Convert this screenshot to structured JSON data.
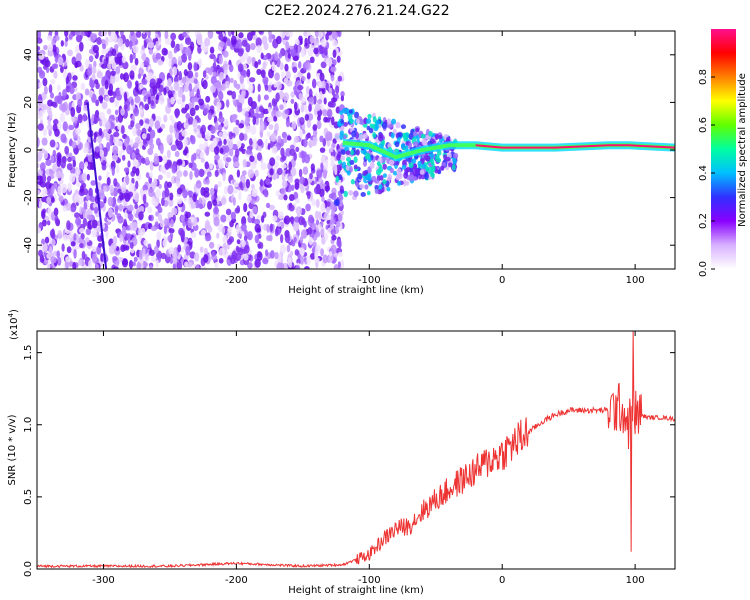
{
  "title": "C2E2.2024.276.21.24.G22",
  "chart_data": [
    {
      "type": "heatmap",
      "xlabel": "Height of straight line (km)",
      "ylabel": "Frequency (Hz)",
      "xlim": [
        -350,
        130
      ],
      "ylim": [
        -50,
        50
      ],
      "xticks": [
        -300,
        -200,
        -100,
        0,
        100
      ],
      "yticks": [
        -40,
        -20,
        0,
        20,
        40
      ],
      "colorbar": {
        "label": "Normalized spectral amplitude",
        "range": [
          0.0,
          1.0
        ],
        "ticks": [
          0.0,
          0.2,
          0.4,
          0.6,
          0.8
        ],
        "colors": [
          "#ffffff",
          "#d8b0ff",
          "#8800ff",
          "#3030ff",
          "#00c0ff",
          "#00ffa0",
          "#60ff00",
          "#ffff00",
          "#ff8000",
          "#ff0000",
          "#ff1090"
        ]
      },
      "signal_trace": [
        {
          "x": -120,
          "y": 3
        },
        {
          "x": -100,
          "y": 2
        },
        {
          "x": -80,
          "y": -3
        },
        {
          "x": -60,
          "y": 0
        },
        {
          "x": -40,
          "y": 2
        },
        {
          "x": -20,
          "y": 2
        },
        {
          "x": 0,
          "y": 1
        },
        {
          "x": 40,
          "y": 1
        },
        {
          "x": 80,
          "y": 2
        },
        {
          "x": 95,
          "y": 2
        },
        {
          "x": 130,
          "y": 1
        }
      ]
    },
    {
      "type": "line",
      "xlabel": "Height of straight line (km)",
      "ylabel": "SNR (10 * v/v)",
      "yscale_label": "(x10",
      "yscale_exp": "4",
      "yscale_close": ")",
      "xlim": [
        -350,
        130
      ],
      "ylim": [
        0,
        1.65
      ],
      "xticks": [
        -300,
        -200,
        -100,
        0,
        100
      ],
      "yticks": [
        "0.0",
        "0.5",
        "1.0",
        "1.5"
      ],
      "color": "#ee3333",
      "series": [
        {
          "x": [
            -350,
            -300,
            -250,
            -200,
            -150,
            -120,
            -100,
            -90,
            -80,
            -70,
            -60,
            -50,
            -40,
            -30,
            -20,
            -10,
            0,
            10,
            20,
            30,
            40,
            50,
            60,
            70,
            80,
            90,
            95,
            100,
            110,
            120,
            130
          ],
          "values": [
            0.02,
            0.02,
            0.02,
            0.04,
            0.02,
            0.03,
            0.1,
            0.2,
            0.28,
            0.3,
            0.4,
            0.48,
            0.55,
            0.62,
            0.68,
            0.75,
            0.8,
            0.88,
            0.95,
            1.02,
            1.07,
            1.1,
            1.1,
            1.1,
            1.1,
            1.12,
            1.0,
            1.08,
            1.05,
            1.05,
            1.04
          ]
        }
      ]
    }
  ]
}
